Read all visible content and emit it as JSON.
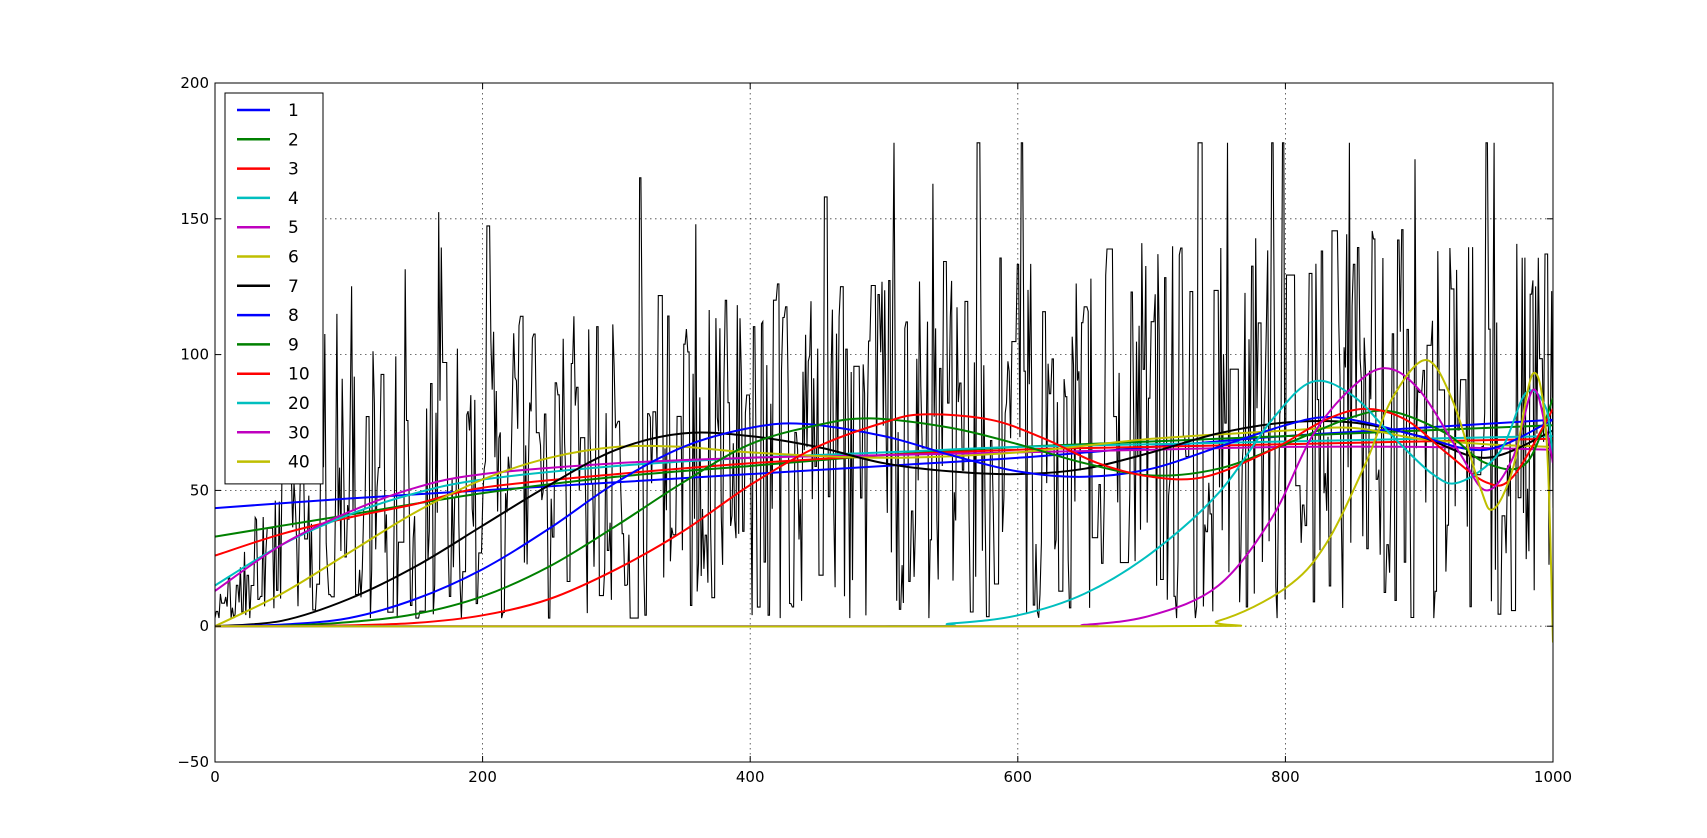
{
  "chart_data": {
    "type": "line",
    "title": "",
    "xlabel": "",
    "ylabel": "",
    "xlim": [
      0,
      1000
    ],
    "ylim": [
      -50,
      200
    ],
    "grid": true,
    "legend_position": "top-left",
    "x_ticks": [
      0,
      200,
      400,
      600,
      800,
      1000
    ],
    "x_tick_labels": [
      "0",
      "200",
      "400",
      "600",
      "800",
      "1000"
    ],
    "y_ticks": [
      -50,
      0,
      50,
      100,
      150,
      200
    ],
    "y_tick_labels": [
      "−50",
      "0",
      "50",
      "100",
      "150",
      "200"
    ],
    "raw_signal": {
      "color": "#000000",
      "x_range": [
        0,
        1000
      ],
      "points": 1000,
      "trend": [
        [
          0,
          3
        ],
        [
          100,
          50
        ],
        [
          300,
          60
        ],
        [
          600,
          70
        ],
        [
          1000,
          75
        ]
      ],
      "amplitude": [
        [
          0,
          10
        ],
        [
          100,
          55
        ],
        [
          500,
          65
        ],
        [
          850,
          75
        ],
        [
          1000,
          70
        ]
      ],
      "min": 3,
      "max": 178
    },
    "series": [
      {
        "name": "1",
        "color": "#0000ff",
        "width": 2,
        "points": [
          [
            0,
            43.5
          ],
          [
            100,
            47
          ],
          [
            200,
            50
          ],
          [
            300,
            53
          ],
          [
            400,
            56
          ],
          [
            500,
            59
          ],
          [
            600,
            62
          ],
          [
            700,
            66
          ],
          [
            800,
            70
          ],
          [
            900,
            73
          ],
          [
            1000,
            76
          ]
        ]
      },
      {
        "name": "2",
        "color": "#008000",
        "width": 2,
        "points": [
          [
            0,
            33
          ],
          [
            50,
            37
          ],
          [
            100,
            41
          ],
          [
            200,
            49
          ],
          [
            300,
            55
          ],
          [
            400,
            59
          ],
          [
            500,
            63
          ],
          [
            600,
            66
          ],
          [
            700,
            68
          ],
          [
            800,
            70
          ],
          [
            900,
            72
          ],
          [
            1000,
            74
          ]
        ]
      },
      {
        "name": "3",
        "color": "#ff0000",
        "width": 2,
        "points": [
          [
            0,
            26
          ],
          [
            50,
            34
          ],
          [
            100,
            40
          ],
          [
            150,
            45
          ],
          [
            200,
            51
          ],
          [
            300,
            56
          ],
          [
            400,
            60
          ],
          [
            500,
            63
          ],
          [
            600,
            65
          ],
          [
            700,
            66
          ],
          [
            800,
            67
          ],
          [
            900,
            68
          ],
          [
            1000,
            69
          ]
        ]
      },
      {
        "name": "4",
        "color": "#00bfbf",
        "width": 2,
        "points": [
          [
            0,
            15
          ],
          [
            50,
            30
          ],
          [
            100,
            41
          ],
          [
            150,
            49
          ],
          [
            200,
            54
          ],
          [
            300,
            59
          ],
          [
            400,
            62
          ],
          [
            500,
            64
          ],
          [
            600,
            66
          ],
          [
            700,
            67
          ],
          [
            800,
            68
          ],
          [
            900,
            69
          ],
          [
            1000,
            70
          ]
        ]
      },
      {
        "name": "5",
        "color": "#bf00bf",
        "width": 2,
        "points": [
          [
            0,
            13
          ],
          [
            50,
            30
          ],
          [
            100,
            42
          ],
          [
            150,
            51
          ],
          [
            200,
            56
          ],
          [
            300,
            60
          ],
          [
            400,
            62
          ],
          [
            500,
            63
          ],
          [
            600,
            64
          ],
          [
            700,
            65
          ],
          [
            800,
            66
          ],
          [
            900,
            66
          ],
          [
            1000,
            65
          ]
        ]
      },
      {
        "name": "6",
        "color": "#bfbf00",
        "width": 2,
        "points": [
          [
            0,
            0
          ],
          [
            50,
            12
          ],
          [
            100,
            27
          ],
          [
            150,
            42
          ],
          [
            200,
            54
          ],
          [
            250,
            62
          ],
          [
            300,
            66
          ],
          [
            350,
            66
          ],
          [
            400,
            64
          ],
          [
            500,
            62
          ],
          [
            600,
            64
          ],
          [
            700,
            69
          ],
          [
            800,
            72
          ],
          [
            850,
            73
          ],
          [
            900,
            69
          ],
          [
            950,
            67
          ],
          [
            1000,
            66
          ]
        ]
      },
      {
        "name": "7",
        "color": "#000000",
        "width": 2,
        "points": [
          [
            0,
            0
          ],
          [
            50,
            2
          ],
          [
            100,
            10
          ],
          [
            150,
            22
          ],
          [
            200,
            37
          ],
          [
            250,
            52
          ],
          [
            300,
            65
          ],
          [
            350,
            71
          ],
          [
            400,
            70
          ],
          [
            450,
            66
          ],
          [
            500,
            60
          ],
          [
            550,
            57
          ],
          [
            600,
            56
          ],
          [
            650,
            58
          ],
          [
            700,
            64
          ],
          [
            750,
            71
          ],
          [
            800,
            75
          ],
          [
            850,
            75
          ],
          [
            900,
            70
          ],
          [
            950,
            62
          ],
          [
            1000,
            72
          ]
        ]
      },
      {
        "name": "8",
        "color": "#0000ff",
        "width": 2,
        "points": [
          [
            0,
            0
          ],
          [
            50,
            0.6
          ],
          [
            100,
            3
          ],
          [
            150,
            10
          ],
          [
            200,
            21
          ],
          [
            250,
            36
          ],
          [
            300,
            53
          ],
          [
            350,
            66
          ],
          [
            400,
            73
          ],
          [
            440,
            74.5
          ],
          [
            500,
            70
          ],
          [
            550,
            63
          ],
          [
            600,
            57
          ],
          [
            650,
            55
          ],
          [
            700,
            58
          ],
          [
            750,
            66
          ],
          [
            800,
            74
          ],
          [
            830,
            77
          ],
          [
            860,
            75
          ],
          [
            900,
            70
          ],
          [
            950,
            65
          ],
          [
            1000,
            76
          ]
        ]
      },
      {
        "name": "9",
        "color": "#008000",
        "width": 2,
        "points": [
          [
            0,
            0
          ],
          [
            50,
            0.2
          ],
          [
            100,
            1.5
          ],
          [
            150,
            4.5
          ],
          [
            200,
            11
          ],
          [
            250,
            22
          ],
          [
            300,
            37
          ],
          [
            350,
            53
          ],
          [
            400,
            67
          ],
          [
            450,
            74
          ],
          [
            490,
            76.5
          ],
          [
            550,
            73
          ],
          [
            600,
            67
          ],
          [
            650,
            60
          ],
          [
            700,
            55.5
          ],
          [
            750,
            58
          ],
          [
            800,
            67
          ],
          [
            850,
            77
          ],
          [
            880,
            79
          ],
          [
            920,
            71
          ],
          [
            950,
            60
          ],
          [
            980,
            60
          ],
          [
            1000,
            84
          ]
        ]
      },
      {
        "name": "10",
        "color": "#ff0000",
        "width": 2,
        "points": [
          [
            0,
            0
          ],
          [
            50,
            0
          ],
          [
            100,
            0.3
          ],
          [
            150,
            1.2
          ],
          [
            200,
            4
          ],
          [
            250,
            10
          ],
          [
            300,
            21
          ],
          [
            350,
            35
          ],
          [
            400,
            52
          ],
          [
            450,
            66
          ],
          [
            500,
            75
          ],
          [
            530,
            78
          ],
          [
            580,
            76
          ],
          [
            620,
            69
          ],
          [
            660,
            60
          ],
          [
            700,
            55
          ],
          [
            740,
            55
          ],
          [
            790,
            65
          ],
          [
            830,
            76
          ],
          [
            860,
            80
          ],
          [
            890,
            76
          ],
          [
            920,
            64
          ],
          [
            950,
            53
          ],
          [
            970,
            55
          ],
          [
            1000,
            80
          ]
        ]
      },
      {
        "name": "20",
        "color": "#00bfbf",
        "width": 2,
        "points": [
          [
            0,
            0
          ],
          [
            500,
            0
          ],
          [
            550,
            1
          ],
          [
            600,
            4
          ],
          [
            650,
            12
          ],
          [
            700,
            27
          ],
          [
            750,
            49
          ],
          [
            790,
            76
          ],
          [
            820,
            90
          ],
          [
            850,
            85
          ],
          [
            880,
            70
          ],
          [
            910,
            56
          ],
          [
            930,
            53
          ],
          [
            960,
            64
          ],
          [
            980,
            86
          ],
          [
            995,
            80
          ],
          [
            1000,
            60
          ]
        ]
      },
      {
        "name": "30",
        "color": "#bf00bf",
        "width": 2,
        "points": [
          [
            0,
            0
          ],
          [
            600,
            0
          ],
          [
            650,
            0.5
          ],
          [
            700,
            4
          ],
          [
            750,
            15
          ],
          [
            790,
            40
          ],
          [
            820,
            70
          ],
          [
            850,
            88
          ],
          [
            875,
            95
          ],
          [
            900,
            87
          ],
          [
            930,
            64
          ],
          [
            950,
            50
          ],
          [
            970,
            62
          ],
          [
            985,
            87
          ],
          [
            995,
            72
          ],
          [
            1000,
            60
          ]
        ]
      },
      {
        "name": "40",
        "color": "#bfbf00",
        "width": 2,
        "points": [
          [
            0,
            0
          ],
          [
            700,
            0
          ],
          [
            750,
            2
          ],
          [
            800,
            14
          ],
          [
            830,
            30
          ],
          [
            860,
            60
          ],
          [
            880,
            84
          ],
          [
            905,
            98
          ],
          [
            925,
            83
          ],
          [
            945,
            52
          ],
          [
            955,
            43
          ],
          [
            970,
            58
          ],
          [
            985,
            93
          ],
          [
            995,
            70
          ],
          [
            1000,
            -6
          ]
        ]
      }
    ]
  }
}
